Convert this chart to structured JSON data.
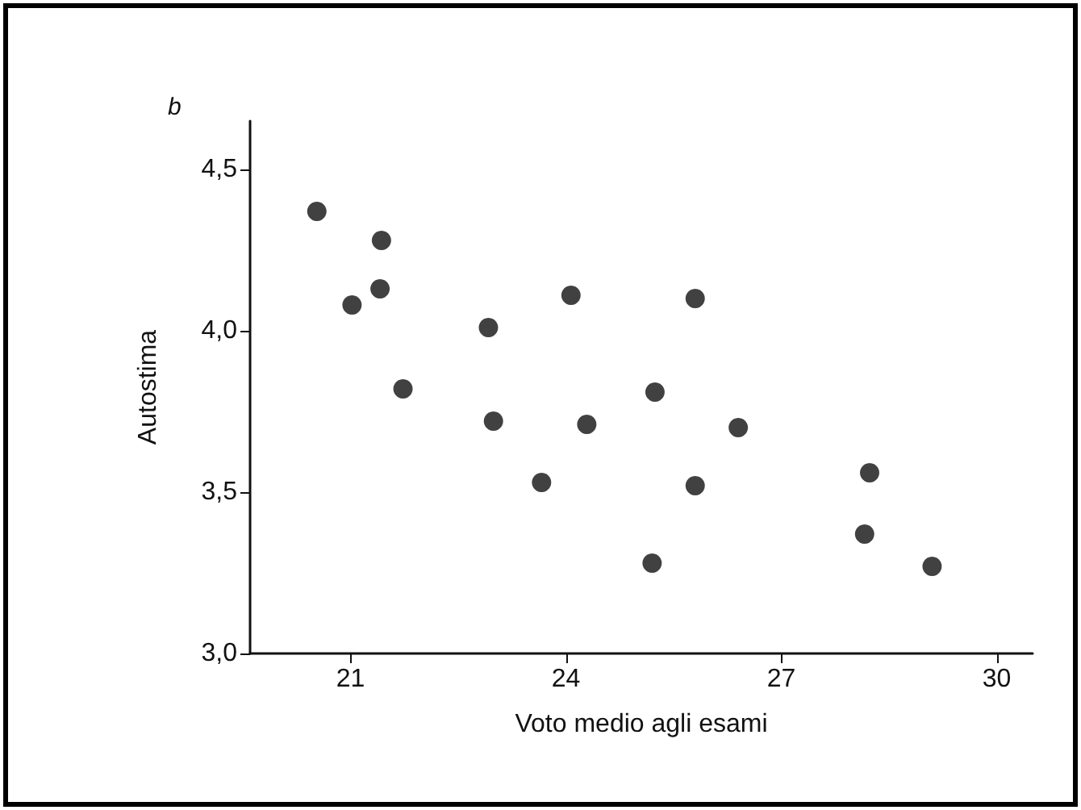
{
  "chart_data": {
    "type": "scatter",
    "xlabel": "Voto medio agli esami",
    "ylabel": "Autostima",
    "annotations": [
      "b"
    ],
    "marker": "circle",
    "x": [
      20.53,
      21.02,
      21.43,
      21.41,
      21.73,
      22.92,
      22.99,
      24.07,
      23.66,
      24.29,
      25.24,
      25.2,
      25.8,
      25.8,
      26.4,
      28.23,
      28.16,
      29.1
    ],
    "series": [
      {
        "color": "#111111",
        "values": [
          4.37,
          4.08,
          4.28,
          4.13,
          3.82,
          4.01,
          3.72,
          4.11,
          3.53,
          3.71,
          3.81,
          3.28,
          4.1,
          3.52,
          3.7,
          3.56,
          3.37,
          3.27
        ]
      }
    ],
    "xlim": [
      19.6,
      30.5
    ],
    "xticks": [
      21,
      24,
      27,
      30
    ],
    "ylim": [
      3.0,
      4.65
    ],
    "yticks": [
      {
        "value": 3.0,
        "label": "3,0"
      },
      {
        "value": 3.5,
        "label": "3,5"
      },
      {
        "value": 4.0,
        "label": "4,0"
      },
      {
        "value": 4.5,
        "label": "4,5"
      }
    ]
  }
}
